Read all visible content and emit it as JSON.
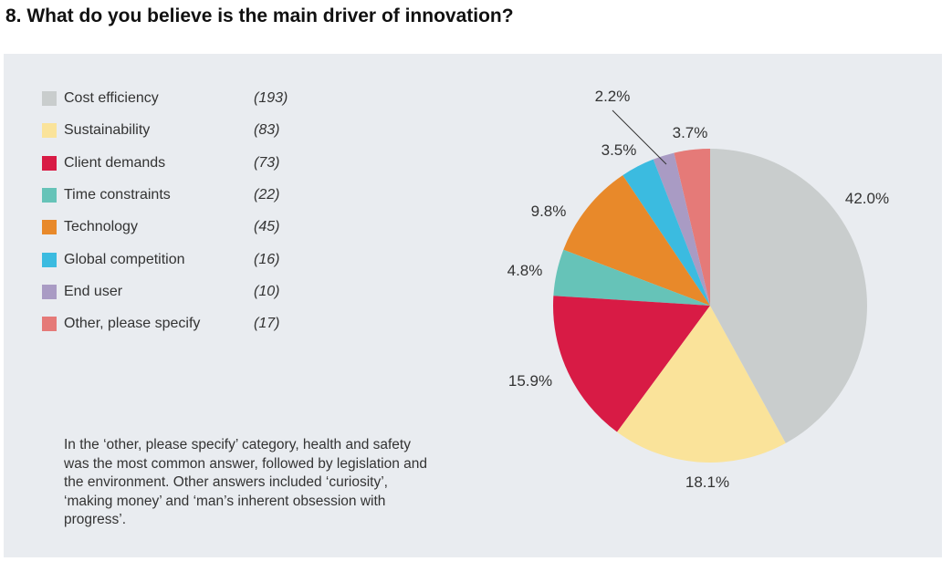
{
  "title": "8. What do you believe is the main driver of innovation?",
  "note": "In the ‘other, please specify’ category, health and safety was the most common answer, followed by legislation and the environment. Other answers included ‘curiosity’, ‘making money’ and ‘man’s inherent obsession with progress’.",
  "chart_data": {
    "type": "pie",
    "title": "8. What do you believe is the main driver of innovation?",
    "categories": [
      "Cost efficiency",
      "Sustainability",
      "Client demands",
      "Time constraints",
      "Technology",
      "Global competition",
      "End user",
      "Other, please specify"
    ],
    "counts": [
      "(193)",
      "(83)",
      "(73)",
      "(22)",
      "(45)",
      "(16)",
      "(10)",
      "(17)"
    ],
    "values": [
      42.0,
      18.1,
      15.9,
      4.8,
      9.8,
      3.5,
      2.2,
      3.7
    ],
    "labels": [
      "42.0%",
      "18.1%",
      "15.9%",
      "4.8%",
      "9.8%",
      "3.5%",
      "2.2%",
      "3.7%"
    ],
    "colors": [
      "#c9cdcd",
      "#fae39a",
      "#d81b45",
      "#66c3b8",
      "#e8892a",
      "#3bbbe0",
      "#a99bc4",
      "#e57a78"
    ],
    "legend": "left"
  }
}
